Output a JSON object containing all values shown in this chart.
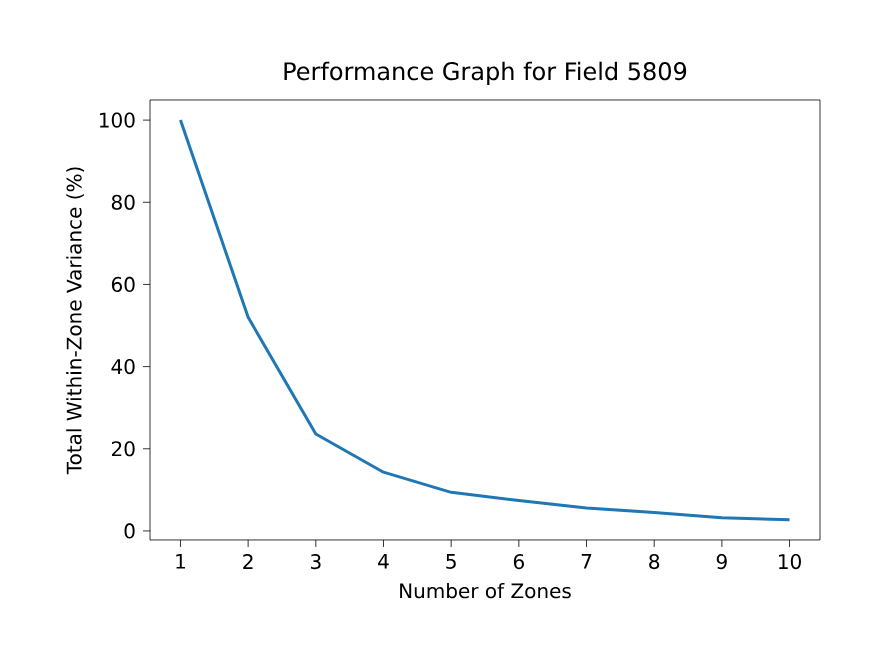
{
  "chart_data": {
    "type": "line",
    "title": "Performance Graph for Field 5809",
    "xlabel": "Number of Zones",
    "ylabel": "Total Within-Zone Variance (%)",
    "x": [
      1,
      2,
      3,
      4,
      5,
      6,
      7,
      8,
      9,
      10
    ],
    "series": [
      {
        "color": "#1f77b4",
        "values": [
          100,
          52,
          23.6,
          14.3,
          9.4,
          7.4,
          5.6,
          4.5,
          3.2,
          2.7
        ]
      }
    ],
    "xlim": [
      0.55,
      10.45
    ],
    "ylim": [
      -2.2,
      104.9
    ],
    "xticks": [
      1,
      2,
      3,
      4,
      5,
      6,
      7,
      8,
      9,
      10
    ],
    "yticks": [
      0,
      20,
      40,
      60,
      80,
      100
    ],
    "grid": false,
    "marker": "none",
    "line_style": "solid"
  }
}
